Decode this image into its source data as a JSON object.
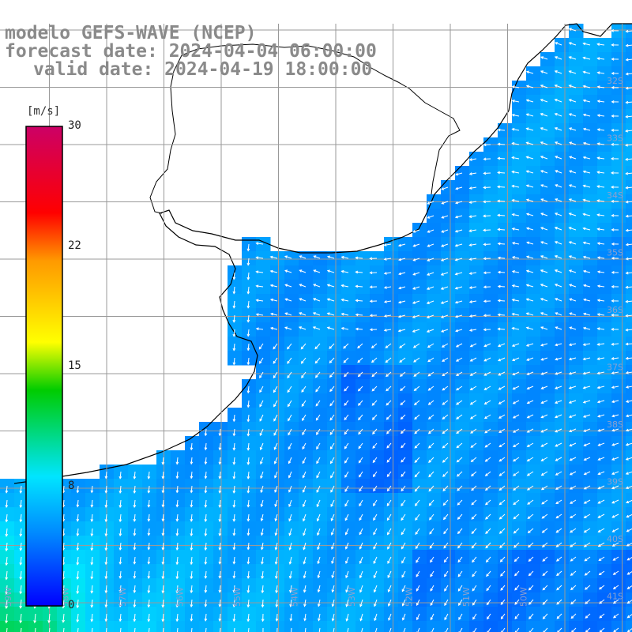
{
  "header": {
    "line1": "modelo GEFS-WAVE (NCEP)",
    "line2": "forecast date: 2024-04-04 06:00:00",
    "line3": "valid date: 2024-04-19 18:00:00"
  },
  "colorbar": {
    "unit": "[m/s]",
    "ticks": [
      {
        "label": "30",
        "value": 30
      },
      {
        "label": "22",
        "value": 22
      },
      {
        "label": "15",
        "value": 15
      },
      {
        "label": "8",
        "value": 8
      },
      {
        "label": "0",
        "value": 0
      }
    ],
    "range": [
      0,
      30
    ],
    "colors": [
      "#0000ff",
      "#0088ff",
      "#00e5ff",
      "#00cc00",
      "#ffff00",
      "#ff9900",
      "#ff0000",
      "#cc0066"
    ]
  },
  "map": {
    "land_color": "#ffffff",
    "grid_color": "#999999",
    "latitude_labels": [
      "32S",
      "33S",
      "34S",
      "35S",
      "36S",
      "37S",
      "38S",
      "39S",
      "40S",
      "41S"
    ],
    "longitude_labels": [
      "59W",
      "58W",
      "57W",
      "56W",
      "55W",
      "54W",
      "53W",
      "52W",
      "51W",
      "50W"
    ]
  }
}
